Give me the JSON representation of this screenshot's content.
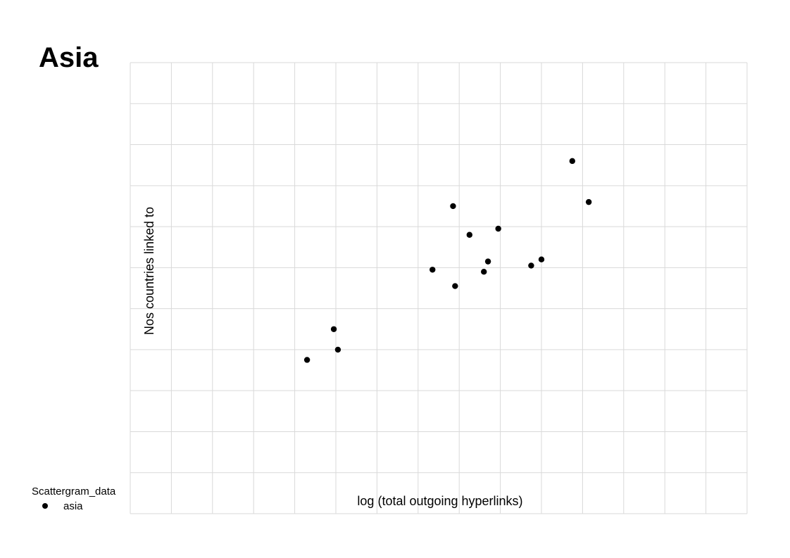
{
  "chart_data": {
    "type": "scatter",
    "title": "Asia",
    "xlabel": "log (total outgoing hyperlinks)",
    "ylabel": "Nos countries linked to",
    "xlim": [
      0,
      15
    ],
    "ylim": [
      0,
      11
    ],
    "grid": true,
    "legend": {
      "title": "Scattergram_data",
      "placement": "bottom-left",
      "entries": [
        "asia"
      ]
    },
    "series": [
      {
        "name": "asia",
        "color": "#000000",
        "points": [
          {
            "x": 4.3,
            "y": 3.75
          },
          {
            "x": 4.95,
            "y": 4.5
          },
          {
            "x": 5.05,
            "y": 4.0
          },
          {
            "x": 7.35,
            "y": 5.95
          },
          {
            "x": 7.85,
            "y": 7.5
          },
          {
            "x": 7.9,
            "y": 5.55
          },
          {
            "x": 8.25,
            "y": 6.8
          },
          {
            "x": 8.6,
            "y": 5.9
          },
          {
            "x": 8.7,
            "y": 6.15
          },
          {
            "x": 8.95,
            "y": 6.95
          },
          {
            "x": 9.75,
            "y": 6.05
          },
          {
            "x": 10.0,
            "y": 6.2
          },
          {
            "x": 10.75,
            "y": 8.6
          },
          {
            "x": 11.15,
            "y": 7.6
          }
        ]
      }
    ]
  }
}
